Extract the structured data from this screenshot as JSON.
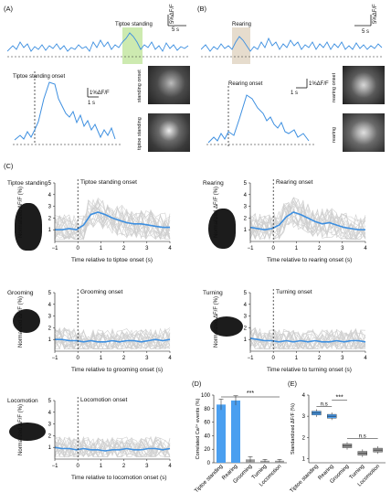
{
  "panel_labels": {
    "A": "(A)",
    "B": "(B)",
    "C": "(C)",
    "D": "(D)",
    "E": "(E)"
  },
  "panelA": {
    "event_label": "Tiptoe standing",
    "onset_label": "Tiptoe standing onset",
    "scale_time": "5 s",
    "scale_amp": "5%ΔF/F",
    "inset_scale_time": "1 s",
    "inset_scale_amp": "1%ΔF/F",
    "photo_labels": [
      "standing onset",
      "tiptoe standing"
    ]
  },
  "panelB": {
    "event_label": "Rearing",
    "onset_label": "Rearing onset",
    "scale_time": "5 s",
    "scale_amp": "5%ΔF/F",
    "inset_scale_time": "1 s",
    "inset_scale_amp": "1%ΔF/F",
    "photo_labels": [
      "rearing onset",
      "rearing"
    ]
  },
  "panelC": {
    "ylabel": "Normalized ΔF/F (%)",
    "yticks": [
      "1",
      "2",
      "3",
      "4",
      "5"
    ],
    "xticks": [
      "−1",
      "0",
      "1",
      "2",
      "3",
      "4"
    ],
    "plots": [
      {
        "behavior": "Tiptoe standing",
        "onset": "Tiptoe standing onset",
        "xlabel": "Time relative to tiptoe onset (s)"
      },
      {
        "behavior": "Rearing",
        "onset": "Rearing onset",
        "xlabel": "Time relative to rearing onset (s)"
      },
      {
        "behavior": "Grooming",
        "onset": "Grooming onset",
        "xlabel": "Time relative to grooming onset (s)"
      },
      {
        "behavior": "Turning",
        "onset": "Turning onset",
        "xlabel": "Time relative to turning onset (s)"
      },
      {
        "behavior": "Locomotion",
        "onset": "Locomotion onset",
        "xlabel": "Time relative to locomotion onset (s)"
      }
    ]
  },
  "panelD": {
    "ylabel": "Correlated Ca²⁺ events (%)",
    "yticks": [
      "0",
      "20",
      "40",
      "60",
      "80",
      "100"
    ],
    "significance": "***"
  },
  "panelE": {
    "ylabel": "Standardized ΔF/F (%)",
    "yticks": [
      "1",
      "2",
      "3",
      "4"
    ],
    "sig_ns1": "n.s",
    "sig_ns2": "n.s",
    "sig_star": "***"
  },
  "chart_data": [
    {
      "type": "bar",
      "panel": "D",
      "categories": [
        "Tiptoe standing",
        "Rearing",
        "Grooming",
        "Turning",
        "Locomotion"
      ],
      "values": [
        86,
        92,
        5,
        3,
        3
      ],
      "errors": [
        8,
        7,
        4,
        2,
        2
      ],
      "ylabel": "Correlated Ca²⁺ events (%)",
      "ylim": [
        0,
        100
      ],
      "colors": [
        "#4a9ff0",
        "#4a9ff0",
        "#9a9a9a",
        "#9a9a9a",
        "#9a9a9a"
      ]
    },
    {
      "type": "scatter",
      "panel": "E",
      "categories": [
        "Tiptoe standing",
        "Rearing",
        "Grooming",
        "Turning",
        "Locomotion"
      ],
      "values": [
        3.15,
        3.0,
        1.6,
        1.25,
        1.4
      ],
      "ylabel": "Standardized ΔF/F (%)",
      "ylim": [
        0.8,
        4.0
      ],
      "colors": [
        "#4a9ff0",
        "#4a9ff0",
        "#9a9a9a",
        "#9a9a9a",
        "#9a9a9a"
      ]
    }
  ],
  "colors": {
    "trace": "#3d8fe0",
    "highlight_green": "#cdeab0",
    "highlight_tan": "#e6dccd",
    "bar_blue": "#4a9ff0",
    "gray": "#9a9a9a",
    "light_gray": "#c8c8c8"
  }
}
